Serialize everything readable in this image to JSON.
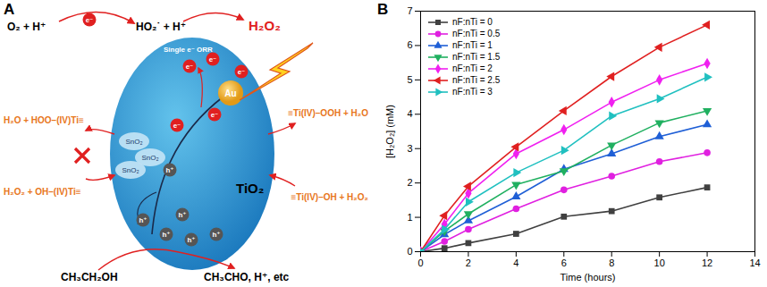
{
  "chart_data": {
    "type": "line",
    "label": "B",
    "x_label": "Time (hours)",
    "y_label": "[H₂O₂] (mM)",
    "x": [
      0,
      1,
      2,
      4,
      6,
      8,
      10,
      12
    ],
    "series": [
      {
        "name": "nF:nTi = 0",
        "color": "#404040",
        "marker": "square",
        "values": [
          0,
          0.1,
          0.25,
          0.52,
          1.02,
          1.18,
          1.58,
          1.87
        ]
      },
      {
        "name": "nF:nTi = 0.5",
        "color": "#e020e0",
        "marker": "circle",
        "values": [
          0,
          0.3,
          0.65,
          1.25,
          1.8,
          2.2,
          2.62,
          2.88
        ]
      },
      {
        "name": "nF:nTi = 1",
        "color": "#1f5fd6",
        "marker": "triangle-up",
        "values": [
          0,
          0.5,
          0.9,
          1.6,
          2.4,
          2.85,
          3.35,
          3.7
        ]
      },
      {
        "name": "nF:nTi = 1.5",
        "color": "#20b060",
        "marker": "triangle-down",
        "values": [
          0,
          0.6,
          1.1,
          1.95,
          2.35,
          3.1,
          3.75,
          4.1
        ]
      },
      {
        "name": "nF:nTi = 2",
        "color": "#f020f0",
        "marker": "diamond",
        "values": [
          0,
          0.8,
          1.7,
          2.85,
          3.55,
          4.35,
          5.0,
          5.48
        ]
      },
      {
        "name": "nF:nTi = 2.5",
        "color": "#e02020",
        "marker": "triangle-left",
        "values": [
          0,
          1.05,
          1.9,
          3.05,
          4.1,
          5.1,
          5.95,
          6.6
        ]
      },
      {
        "name": "nF:nTi = 3",
        "color": "#20c0c0",
        "marker": "triangle-right",
        "values": [
          0,
          0.65,
          1.45,
          2.3,
          2.95,
          3.95,
          4.45,
          5.08
        ]
      }
    ],
    "xlim": [
      0,
      14
    ],
    "xticks": [
      0,
      2,
      4,
      6,
      8,
      10,
      12,
      14
    ],
    "ylim": [
      0,
      7
    ],
    "yticks": [
      0,
      1,
      2,
      3,
      4,
      5,
      6,
      7
    ],
    "legend": "upper left",
    "grid": false
  },
  "diagram": {
    "label": "A",
    "reactions": {
      "o2": "O₂ + H⁺",
      "ho2": "HO₂˙ + H⁺",
      "orr": "Single e⁻ ORR",
      "h2o2": "H₂O₂",
      "left_top": "H₂O + HOO–(IV)Ti≡",
      "left_bottom": "H₂O₂ + OH–(IV)Ti≡",
      "right_top": "≡Ti(IV)–OOH + H₂O",
      "right_bottom": "≡Ti(IV)–OH + H₂O₂",
      "ethanol": "CH₃CH₂OH",
      "products": "CH₃CHO, H⁺, etc"
    },
    "particle": "TiO₂",
    "cocatalyst": "Au",
    "oxide": "SnO₂",
    "electron": "e⁻",
    "hole": "h⁺"
  }
}
